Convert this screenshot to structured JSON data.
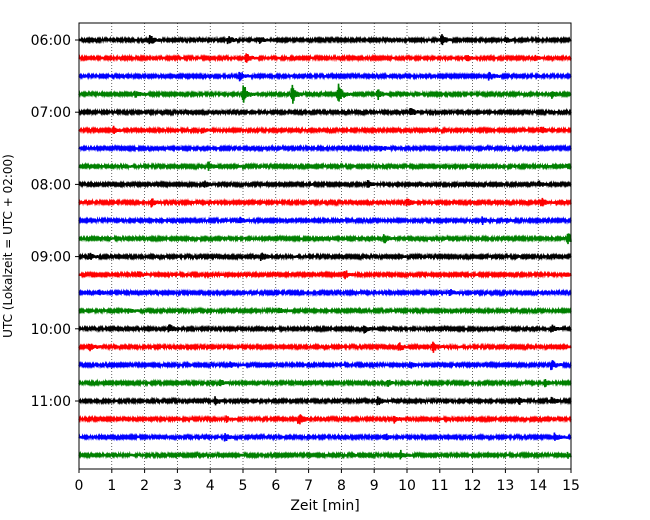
{
  "chart_data": {
    "type": "line",
    "title": "",
    "xlabel": "Zeit  [min]",
    "ylabel": "UTC (Lokalzeit = UTC + 02:00)",
    "xlim": [
      0,
      15
    ],
    "x_ticks": [
      "0",
      "1",
      "2",
      "3",
      "4",
      "5",
      "6",
      "7",
      "8",
      "9",
      "10",
      "11",
      "12",
      "13",
      "14",
      "15"
    ],
    "y_ticks": [
      "06:00",
      "07:00",
      "08:00",
      "09:00",
      "10:00",
      "11:00"
    ],
    "grid": "vertical dotted lines at each minute",
    "legend": "none",
    "colors": [
      "#000000",
      "#ff0000",
      "#0000ff",
      "#008000"
    ],
    "series": [
      {
        "start": "06:00",
        "color": "#000000",
        "events": [
          {
            "x": 2.15,
            "amp": 1.0
          },
          {
            "x": 4.55,
            "amp": 0.7
          },
          {
            "x": 5.5,
            "amp": 0.7
          },
          {
            "x": 11.05,
            "amp": 1.0
          },
          {
            "x": 13.0,
            "amp": 0.6
          }
        ]
      },
      {
        "start": "06:15",
        "color": "#ff0000",
        "events": [
          {
            "x": 5.1,
            "amp": 0.9
          },
          {
            "x": 11.8,
            "amp": 0.7
          },
          {
            "x": 13.9,
            "amp": 0.5
          }
        ]
      },
      {
        "start": "06:30",
        "color": "#0000ff",
        "events": [
          {
            "x": 4.9,
            "amp": 0.8
          },
          {
            "x": 12.5,
            "amp": 0.9
          }
        ]
      },
      {
        "start": "06:45",
        "color": "#008000",
        "events": [
          {
            "x": 1.7,
            "amp": 0.6
          },
          {
            "x": 5.0,
            "amp": 2.0
          },
          {
            "x": 6.5,
            "amp": 1.8
          },
          {
            "x": 7.9,
            "amp": 1.9
          },
          {
            "x": 9.1,
            "amp": 1.0
          },
          {
            "x": 14.4,
            "amp": 0.8
          }
        ]
      },
      {
        "start": "07:00",
        "color": "#000000",
        "events": [
          {
            "x": 10.1,
            "amp": 1.0
          }
        ]
      },
      {
        "start": "07:15",
        "color": "#ff0000",
        "events": [
          {
            "x": 1.05,
            "amp": 0.7
          },
          {
            "x": 3.75,
            "amp": 0.5
          },
          {
            "x": 14.1,
            "amp": 0.9
          }
        ]
      },
      {
        "start": "07:30",
        "color": "#0000ff",
        "events": [
          {
            "x": 9.2,
            "amp": 0.5
          }
        ]
      },
      {
        "start": "07:45",
        "color": "#008000",
        "events": [
          {
            "x": 3.95,
            "amp": 0.8
          },
          {
            "x": 14.9,
            "amp": 0.6
          }
        ]
      },
      {
        "start": "08:00",
        "color": "#000000",
        "events": [
          {
            "x": 3.8,
            "amp": 0.8
          },
          {
            "x": 8.8,
            "amp": 0.6
          },
          {
            "x": 14.0,
            "amp": 0.6
          }
        ]
      },
      {
        "start": "08:15",
        "color": "#ff0000",
        "events": [
          {
            "x": 2.2,
            "amp": 0.8
          },
          {
            "x": 10.0,
            "amp": 0.9
          },
          {
            "x": 14.1,
            "amp": 0.8
          }
        ]
      },
      {
        "start": "08:30",
        "color": "#0000ff",
        "events": [
          {
            "x": 4.9,
            "amp": 0.6
          },
          {
            "x": 12.3,
            "amp": 0.6
          },
          {
            "x": 13.0,
            "amp": 0.5
          }
        ]
      },
      {
        "start": "08:45",
        "color": "#008000",
        "events": [
          {
            "x": 9.3,
            "amp": 0.9
          },
          {
            "x": 14.9,
            "amp": 1.0
          }
        ]
      },
      {
        "start": "09:00",
        "color": "#000000",
        "events": [
          {
            "x": 0.3,
            "amp": 0.7
          },
          {
            "x": 5.55,
            "amp": 0.9
          }
        ]
      },
      {
        "start": "09:15",
        "color": "#ff0000",
        "events": [
          {
            "x": 1.8,
            "amp": 0.6
          },
          {
            "x": 8.1,
            "amp": 0.9
          },
          {
            "x": 14.8,
            "amp": 0.5
          }
        ]
      },
      {
        "start": "09:30",
        "color": "#0000ff",
        "events": [
          {
            "x": 0.6,
            "amp": 0.7
          },
          {
            "x": 11.3,
            "amp": 0.6
          }
        ]
      },
      {
        "start": "09:45",
        "color": "#008000",
        "events": [
          {
            "x": 1.5,
            "amp": 0.6
          },
          {
            "x": 6.1,
            "amp": 0.6
          }
        ]
      },
      {
        "start": "10:00",
        "color": "#000000",
        "events": [
          {
            "x": 2.75,
            "amp": 0.8
          },
          {
            "x": 8.7,
            "amp": 0.7
          },
          {
            "x": 14.4,
            "amp": 0.8
          }
        ]
      },
      {
        "start": "10:15",
        "color": "#ff0000",
        "events": [
          {
            "x": 0.3,
            "amp": 0.9
          },
          {
            "x": 9.75,
            "amp": 0.8
          },
          {
            "x": 10.8,
            "amp": 1.0
          }
        ]
      },
      {
        "start": "10:30",
        "color": "#0000ff",
        "events": [
          {
            "x": 4.6,
            "amp": 0.8
          },
          {
            "x": 10.1,
            "amp": 0.6
          },
          {
            "x": 14.4,
            "amp": 1.0
          }
        ]
      },
      {
        "start": "10:45",
        "color": "#008000",
        "events": [
          {
            "x": 4.3,
            "amp": 0.6
          },
          {
            "x": 9.4,
            "amp": 0.7
          },
          {
            "x": 14.2,
            "amp": 0.7
          }
        ]
      },
      {
        "start": "11:00",
        "color": "#000000",
        "events": [
          {
            "x": 4.15,
            "amp": 0.8
          },
          {
            "x": 9.1,
            "amp": 0.8
          },
          {
            "x": 13.4,
            "amp": 0.7
          },
          {
            "x": 14.4,
            "amp": 0.8
          }
        ]
      },
      {
        "start": "11:15",
        "color": "#ff0000",
        "events": [
          {
            "x": 4.5,
            "amp": 0.6
          },
          {
            "x": 6.7,
            "amp": 1.2
          },
          {
            "x": 9.6,
            "amp": 0.7
          }
        ]
      },
      {
        "start": "11:30",
        "color": "#0000ff",
        "events": [
          {
            "x": 4.45,
            "amp": 0.8
          },
          {
            "x": 9.3,
            "amp": 0.7
          },
          {
            "x": 14.5,
            "amp": 0.8
          }
        ]
      },
      {
        "start": "11:45",
        "color": "#008000",
        "events": [
          {
            "x": 9.8,
            "amp": 0.8
          },
          {
            "x": 14.9,
            "amp": 0.5
          }
        ]
      }
    ]
  }
}
